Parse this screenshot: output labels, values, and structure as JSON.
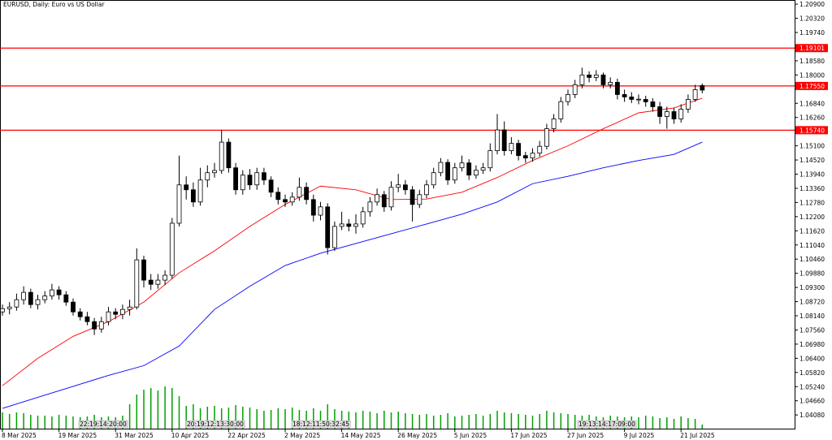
{
  "chart_data": {
    "type": "candlestick",
    "title": "EURUSD, Daily:  Euro vs US Dollar",
    "ylim": [
      1.0352,
      1.2107
    ],
    "yticks": [
      {
        "value": 1.0408,
        "label": "1.04080"
      },
      {
        "value": 1.0466,
        "label": "1.04660"
      },
      {
        "value": 1.0524,
        "label": "1.05240"
      },
      {
        "value": 1.0582,
        "label": "1.05820"
      },
      {
        "value": 1.064,
        "label": "1.06400"
      },
      {
        "value": 1.0698,
        "label": "1.06980"
      },
      {
        "value": 1.0756,
        "label": "1.07560"
      },
      {
        "value": 1.0814,
        "label": "1.08140"
      },
      {
        "value": 1.0872,
        "label": "1.08720"
      },
      {
        "value": 1.093,
        "label": "1.09300"
      },
      {
        "value": 1.0988,
        "label": "1.09880"
      },
      {
        "value": 1.1046,
        "label": "1.10460"
      },
      {
        "value": 1.1104,
        "label": "1.11040"
      },
      {
        "value": 1.1162,
        "label": "1.11620"
      },
      {
        "value": 1.122,
        "label": "1.12200"
      },
      {
        "value": 1.1278,
        "label": "1.12780"
      },
      {
        "value": 1.1336,
        "label": "1.13360"
      },
      {
        "value": 1.1394,
        "label": "1.13940"
      },
      {
        "value": 1.1452,
        "label": "1.14520"
      },
      {
        "value": 1.151,
        "label": "1.15100"
      },
      {
        "value": 1.1626,
        "label": "1.16260"
      },
      {
        "value": 1.1684,
        "label": "1.16840"
      },
      {
        "value": 1.18,
        "label": "1.18000"
      },
      {
        "value": 1.1858,
        "label": "1.18580"
      },
      {
        "value": 1.1974,
        "label": "1.19740"
      },
      {
        "value": 1.2032,
        "label": "1.20320"
      },
      {
        "value": 1.209,
        "label": "1.20900"
      }
    ],
    "xticks": [
      {
        "value": 0,
        "label": "8 Mar 2025"
      },
      {
        "value": 8,
        "label": "19 Mar 2025"
      },
      {
        "value": 16,
        "label": "31 Mar 2025"
      },
      {
        "value": 24,
        "label": "10 Apr 2025"
      },
      {
        "value": 32,
        "label": "22 Apr 2025"
      },
      {
        "value": 40,
        "label": "2 May 2025"
      },
      {
        "value": 48,
        "label": "14 May 2025"
      },
      {
        "value": 56,
        "label": "26 May 2025"
      },
      {
        "value": 64,
        "label": "5 Jun 2025"
      },
      {
        "value": 72,
        "label": "17 Jun 2025"
      },
      {
        "value": 80,
        "label": "27 Jun 2025"
      },
      {
        "value": 88,
        "label": "9 Jul 2025"
      },
      {
        "value": 96,
        "label": "21 Jul 2025"
      }
    ],
    "levels": [
      {
        "value": 1.19101,
        "label": "1.19101",
        "color": "#ff0000"
      },
      {
        "value": 1.1755,
        "label": "1.17550",
        "color": "#ff0000"
      },
      {
        "value": 1.1574,
        "label": "1.15740",
        "color": "#ff0000"
      }
    ],
    "annotations": [
      "22:19:14:20:00",
      "20:19:12:13:30:00",
      "18:12:11:50:32:45",
      "19:13:14:17:09:00"
    ],
    "ohlc": [
      [
        1.083,
        1.086,
        1.0815,
        1.0843
      ],
      [
        1.0843,
        1.087,
        1.082,
        1.085
      ],
      [
        1.085,
        1.0905,
        1.0835,
        1.088
      ],
      [
        1.088,
        1.0935,
        1.086,
        1.091
      ],
      [
        1.091,
        1.0925,
        1.0845,
        1.086
      ],
      [
        1.086,
        1.09,
        1.084,
        1.088
      ],
      [
        1.088,
        1.0915,
        1.0865,
        1.0895
      ],
      [
        1.0895,
        1.0945,
        1.088,
        1.092
      ],
      [
        1.092,
        1.0935,
        1.088,
        1.09
      ],
      [
        1.09,
        1.0915,
        1.0855,
        1.087
      ],
      [
        1.087,
        1.0885,
        1.0815,
        1.083
      ],
      [
        1.083,
        1.0845,
        1.0795,
        1.081
      ],
      [
        1.081,
        1.083,
        1.0775,
        1.079
      ],
      [
        1.079,
        1.0805,
        1.0735,
        1.076
      ],
      [
        1.076,
        1.081,
        1.0745,
        1.079
      ],
      [
        1.079,
        1.085,
        1.0775,
        1.083
      ],
      [
        1.083,
        1.0845,
        1.08,
        1.082
      ],
      [
        1.082,
        1.086,
        1.08,
        1.084
      ],
      [
        1.084,
        1.088,
        1.0815,
        1.085
      ],
      [
        1.085,
        1.109,
        1.084,
        1.1043
      ],
      [
        1.1043,
        1.106,
        1.093,
        1.096
      ],
      [
        1.096,
        1.0985,
        1.092,
        1.0943
      ],
      [
        1.0943,
        1.0985,
        1.0925,
        1.096
      ],
      [
        1.096,
        1.1,
        1.094,
        1.098
      ],
      [
        1.098,
        1.1215,
        1.0965,
        1.1193
      ],
      [
        1.1193,
        1.147,
        1.118,
        1.135
      ],
      [
        1.135,
        1.1385,
        1.129,
        1.133
      ],
      [
        1.133,
        1.136,
        1.126,
        1.128
      ],
      [
        1.128,
        1.142,
        1.1265,
        1.137
      ],
      [
        1.137,
        1.143,
        1.134,
        1.14
      ],
      [
        1.14,
        1.144,
        1.138,
        1.1409
      ],
      [
        1.1409,
        1.1575,
        1.1395,
        1.1525
      ],
      [
        1.1525,
        1.154,
        1.14,
        1.142
      ],
      [
        1.142,
        1.144,
        1.131,
        1.133
      ],
      [
        1.133,
        1.141,
        1.131,
        1.139
      ],
      [
        1.139,
        1.1415,
        1.133,
        1.135
      ],
      [
        1.135,
        1.142,
        1.133,
        1.14
      ],
      [
        1.14,
        1.142,
        1.135,
        1.137
      ],
      [
        1.137,
        1.1385,
        1.13,
        1.132
      ],
      [
        1.132,
        1.134,
        1.127,
        1.129
      ],
      [
        1.129,
        1.131,
        1.126,
        1.128
      ],
      [
        1.128,
        1.132,
        1.1265,
        1.13
      ],
      [
        1.13,
        1.138,
        1.1285,
        1.134
      ],
      [
        1.134,
        1.136,
        1.127,
        1.129
      ],
      [
        1.129,
        1.131,
        1.12,
        1.1226
      ],
      [
        1.1226,
        1.128,
        1.1205,
        1.126
      ],
      [
        1.126,
        1.1275,
        1.1065,
        1.1093
      ],
      [
        1.1093,
        1.12,
        1.108,
        1.118
      ],
      [
        1.118,
        1.124,
        1.1165,
        1.119
      ],
      [
        1.119,
        1.121,
        1.116,
        1.118
      ],
      [
        1.118,
        1.123,
        1.115,
        1.119
      ],
      [
        1.119,
        1.126,
        1.1175,
        1.124
      ],
      [
        1.124,
        1.13,
        1.122,
        1.128
      ],
      [
        1.128,
        1.1335,
        1.1265,
        1.131
      ],
      [
        1.131,
        1.1325,
        1.124,
        1.126
      ],
      [
        1.126,
        1.1365,
        1.1245,
        1.134
      ],
      [
        1.134,
        1.1395,
        1.132,
        1.135
      ],
      [
        1.135,
        1.137,
        1.131,
        1.133
      ],
      [
        1.133,
        1.1345,
        1.12,
        1.127
      ],
      [
        1.127,
        1.133,
        1.1255,
        1.131
      ],
      [
        1.131,
        1.137,
        1.1295,
        1.135
      ],
      [
        1.135,
        1.142,
        1.1335,
        1.14
      ],
      [
        1.14,
        1.146,
        1.1385,
        1.1442
      ],
      [
        1.1442,
        1.1455,
        1.135,
        1.137
      ],
      [
        1.137,
        1.144,
        1.1355,
        1.142
      ],
      [
        1.142,
        1.147,
        1.1405,
        1.144
      ],
      [
        1.144,
        1.1455,
        1.137,
        1.139
      ],
      [
        1.139,
        1.143,
        1.1375,
        1.141
      ],
      [
        1.141,
        1.144,
        1.1395,
        1.142
      ],
      [
        1.142,
        1.152,
        1.1405,
        1.149
      ],
      [
        1.149,
        1.164,
        1.1475,
        1.1575
      ],
      [
        1.1575,
        1.161,
        1.147,
        1.149
      ],
      [
        1.149,
        1.1545,
        1.1475,
        1.152
      ],
      [
        1.152,
        1.1535,
        1.145,
        1.147
      ],
      [
        1.147,
        1.1485,
        1.144,
        1.146
      ],
      [
        1.146,
        1.15,
        1.1445,
        1.148
      ],
      [
        1.148,
        1.153,
        1.1465,
        1.1508
      ],
      [
        1.1508,
        1.16,
        1.1495,
        1.158
      ],
      [
        1.158,
        1.164,
        1.1565,
        1.162
      ],
      [
        1.162,
        1.171,
        1.1605,
        1.1691
      ],
      [
        1.1691,
        1.174,
        1.1675,
        1.172
      ],
      [
        1.172,
        1.178,
        1.1705,
        1.176
      ],
      [
        1.176,
        1.183,
        1.1745,
        1.18
      ],
      [
        1.18,
        1.1815,
        1.177,
        1.179
      ],
      [
        1.179,
        1.182,
        1.1775,
        1.18
      ],
      [
        1.18,
        1.181,
        1.1745,
        1.176
      ],
      [
        1.176,
        1.179,
        1.1745,
        1.177
      ],
      [
        1.177,
        1.1785,
        1.17,
        1.172
      ],
      [
        1.172,
        1.174,
        1.169,
        1.171
      ],
      [
        1.171,
        1.173,
        1.1685,
        1.17
      ],
      [
        1.17,
        1.172,
        1.168,
        1.1701
      ],
      [
        1.17,
        1.1715,
        1.167,
        1.169
      ],
      [
        1.169,
        1.1705,
        1.165,
        1.167
      ],
      [
        1.167,
        1.169,
        1.16,
        1.163
      ],
      [
        1.163,
        1.167,
        1.158,
        1.165
      ],
      [
        1.165,
        1.1665,
        1.16,
        1.162
      ],
      [
        1.162,
        1.168,
        1.1605,
        1.166
      ],
      [
        1.166,
        1.172,
        1.1645,
        1.17
      ],
      [
        1.17,
        1.176,
        1.169,
        1.174
      ],
      [
        1.1757,
        1.1765,
        1.1725,
        1.1738
      ]
    ],
    "series": [
      {
        "color": "#ff0000",
        "x": [
          0,
          5,
          10,
          15,
          20,
          25,
          30,
          35,
          40,
          45,
          50,
          55,
          60,
          65,
          70,
          75,
          80,
          85,
          90,
          95,
          99
        ],
        "values": [
          1.0528,
          1.064,
          1.073,
          1.079,
          1.087,
          1.099,
          1.108,
          1.118,
          1.127,
          1.1345,
          1.133,
          1.129,
          1.1292,
          1.132,
          1.138,
          1.145,
          1.151,
          1.158,
          1.1645,
          1.1665,
          1.1705
        ]
      },
      {
        "color": "#0000ff",
        "x": [
          0,
          5,
          10,
          15,
          20,
          25,
          30,
          35,
          40,
          45,
          50,
          55,
          60,
          65,
          70,
          75,
          80,
          85,
          90,
          95,
          99
        ],
        "values": [
          1.0435,
          1.048,
          1.0525,
          1.057,
          1.061,
          1.069,
          1.084,
          1.0935,
          1.102,
          1.107,
          1.111,
          1.115,
          1.119,
          1.123,
          1.128,
          1.1355,
          1.1385,
          1.142,
          1.145,
          1.1475,
          1.1525
        ]
      }
    ],
    "volume_color": "#00a000",
    "volume": [
      20,
      18,
      20,
      19,
      17,
      16,
      16,
      15,
      17,
      16,
      15,
      14,
      15,
      17,
      14,
      15,
      14,
      16,
      30,
      42,
      48,
      50,
      47,
      52,
      50,
      40,
      28,
      30,
      25,
      27,
      28,
      25,
      26,
      29,
      27,
      26,
      24,
      22,
      23,
      25,
      24,
      26,
      23,
      22,
      25,
      22,
      30,
      24,
      22,
      21,
      20,
      22,
      21,
      19,
      22,
      20,
      21,
      19,
      18,
      17,
      18,
      16,
      17,
      19,
      15,
      16,
      17,
      18,
      16,
      18,
      22,
      20,
      19,
      18,
      17,
      16,
      18,
      22,
      20,
      19,
      18,
      17,
      16,
      17,
      15,
      14,
      16,
      15,
      14,
      15,
      14,
      16,
      15,
      13,
      14,
      12,
      15,
      13,
      12,
      5
    ]
  }
}
